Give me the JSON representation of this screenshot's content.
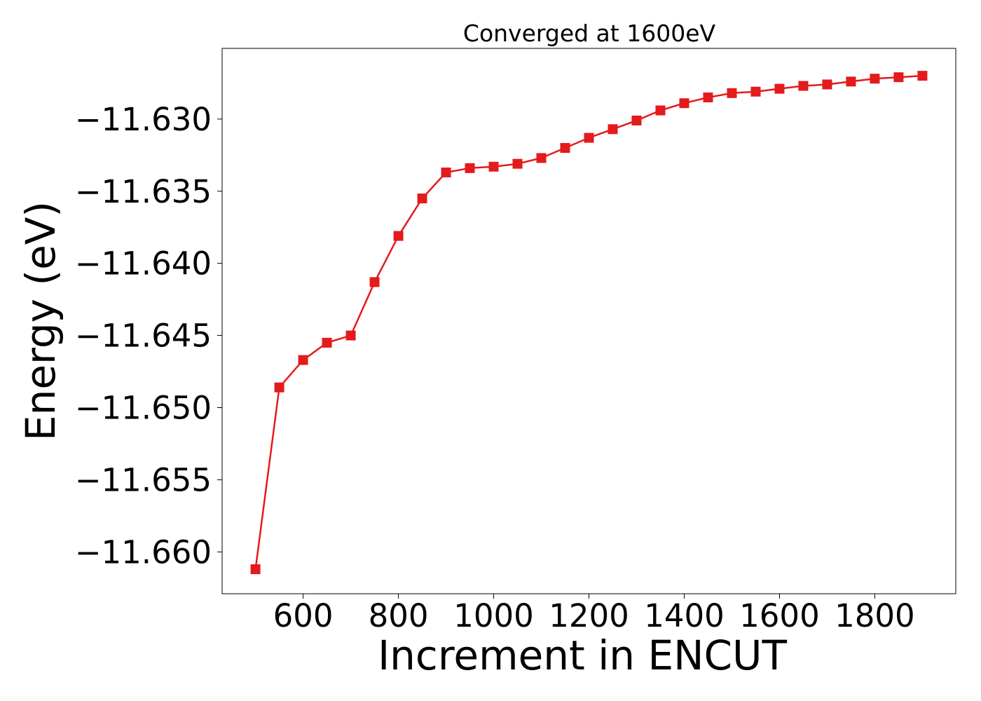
{
  "chart_data": {
    "type": "line",
    "title": "Converged at 1600eV",
    "xlabel": "Increment in ENCUT",
    "ylabel": "Energy (eV)",
    "xlim": [
      430,
      1970
    ],
    "ylim": [
      -11.6629,
      -11.6251
    ],
    "xticks": [
      600,
      800,
      1000,
      1200,
      1400,
      1600,
      1800
    ],
    "yticks": [
      -11.63,
      -11.635,
      -11.64,
      -11.645,
      -11.65,
      -11.655,
      -11.66
    ],
    "ytick_labels": [
      "−11.630",
      "−11.635",
      "−11.640",
      "−11.645",
      "−11.650",
      "−11.655",
      "−11.660"
    ],
    "grid": false,
    "legend": "none",
    "marker": "square",
    "color": "#e41a1c",
    "series": [
      {
        "x": [
          500,
          550,
          600,
          650,
          700,
          750,
          800,
          850,
          900,
          950,
          1000,
          1050,
          1100,
          1150,
          1200,
          1250,
          1300,
          1350,
          1400,
          1450,
          1500,
          1550,
          1600,
          1650,
          1700,
          1750,
          1800,
          1850,
          1900
        ],
        "y": [
          -11.6612,
          -11.6486,
          -11.6467,
          -11.6455,
          -11.645,
          -11.6413,
          -11.6381,
          -11.6355,
          -11.6337,
          -11.6334,
          -11.6333,
          -11.6331,
          -11.6327,
          -11.632,
          -11.6313,
          -11.6307,
          -11.6301,
          -11.6294,
          -11.6289,
          -11.6285,
          -11.6282,
          -11.6281,
          -11.6279,
          -11.6277,
          -11.6276,
          -11.6274,
          -11.6272,
          -11.6271,
          -11.627
        ]
      }
    ]
  }
}
